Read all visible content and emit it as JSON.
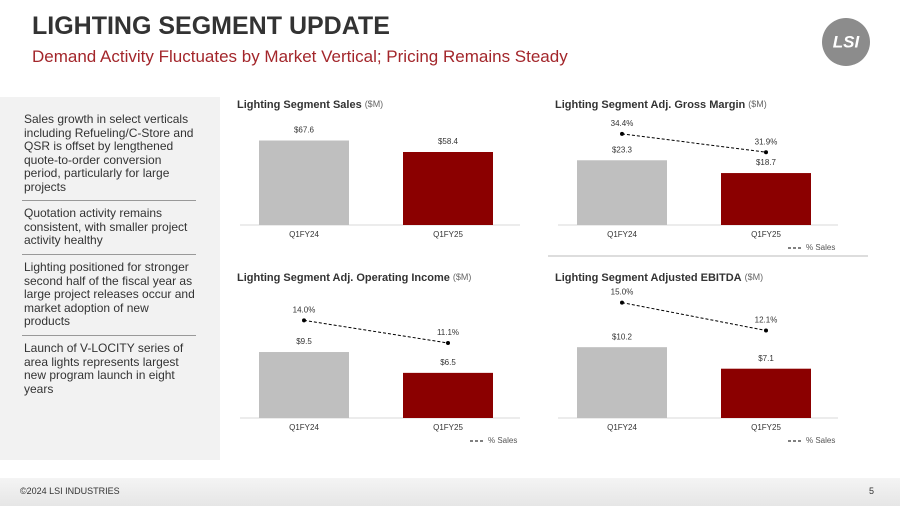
{
  "header": {
    "title": "LIGHTING SEGMENT UPDATE",
    "subtitle": "Demand Activity Fluctuates by Market Vertical; Pricing Remains Steady",
    "logo": "LSI"
  },
  "bullets": [
    "Sales growth in select verticals including Refueling/C-Store and QSR is offset by lengthened quote-to-order conversion period, particularly for large projects",
    "Quotation activity remains consistent, with smaller project activity healthy",
    "Lighting positioned for stronger second half of the fiscal year as large project releases occur and market adoption of new products",
    "Launch of V-LOCITY series of area lights represents largest new program launch in eight years"
  ],
  "footer": {
    "copyright": "©2024 LSI INDUSTRIES",
    "page": "5"
  },
  "chart_data": [
    {
      "type": "bar",
      "title": "Lighting Segment Sales",
      "unit": "($M)",
      "categories": [
        "Q1FY24",
        "Q1FY25"
      ],
      "series": [
        {
          "colors": [
            "#bfbfbf",
            "#8b0000"
          ],
          "values": [
            67.6,
            58.4
          ],
          "value_labels": [
            "$67.6",
            "$58.4"
          ]
        }
      ],
      "ylim": [
        0,
        100
      ]
    },
    {
      "type": "bar",
      "title": "Lighting Segment Adj. Gross Margin",
      "unit": "($M)",
      "categories": [
        "Q1FY24",
        "Q1FY25"
      ],
      "series": [
        {
          "colors": [
            "#bfbfbf",
            "#8b0000"
          ],
          "values": [
            23.3,
            18.7
          ],
          "value_labels": [
            "$23.3",
            "$18.7"
          ]
        },
        {
          "name": "% Sales",
          "axis": "y2",
          "color": "#000000",
          "values": [
            34.4,
            31.9
          ],
          "value_labels": [
            "34.4%",
            "31.9%"
          ]
        }
      ],
      "ylim": [
        0,
        45
      ],
      "y2lim": [
        22,
        39
      ]
    },
    {
      "type": "bar",
      "title": "Lighting Segment Adj. Operating Income",
      "unit": "($M)",
      "categories": [
        "Q1FY24",
        "Q1FY25"
      ],
      "series": [
        {
          "colors": [
            "#bfbfbf",
            "#8b0000"
          ],
          "values": [
            9.5,
            6.5
          ],
          "value_labels": [
            "$9.5",
            "$6.5"
          ]
        },
        {
          "name": "% Sales",
          "axis": "y2",
          "color": "#000000",
          "values": [
            14.0,
            11.1
          ],
          "value_labels": [
            "14.0%",
            "11.1%"
          ]
        }
      ],
      "ylim": [
        0,
        18
      ],
      "y2lim": [
        1.5,
        17.5
      ]
    },
    {
      "type": "bar",
      "title": "Lighting Segment Adjusted EBITDA",
      "unit": "($M)",
      "categories": [
        "Q1FY24",
        "Q1FY25"
      ],
      "series": [
        {
          "colors": [
            "#bfbfbf",
            "#8b0000"
          ],
          "values": [
            10.2,
            7.1
          ],
          "value_labels": [
            "$10.2",
            "$7.1"
          ]
        },
        {
          "name": "% Sales",
          "axis": "y2",
          "color": "#000000",
          "values": [
            15.0,
            12.1
          ],
          "value_labels": [
            "15.0%",
            "12.1%"
          ]
        }
      ],
      "ylim": [
        0,
        18
      ],
      "y2lim": [
        3,
        16
      ]
    }
  ]
}
